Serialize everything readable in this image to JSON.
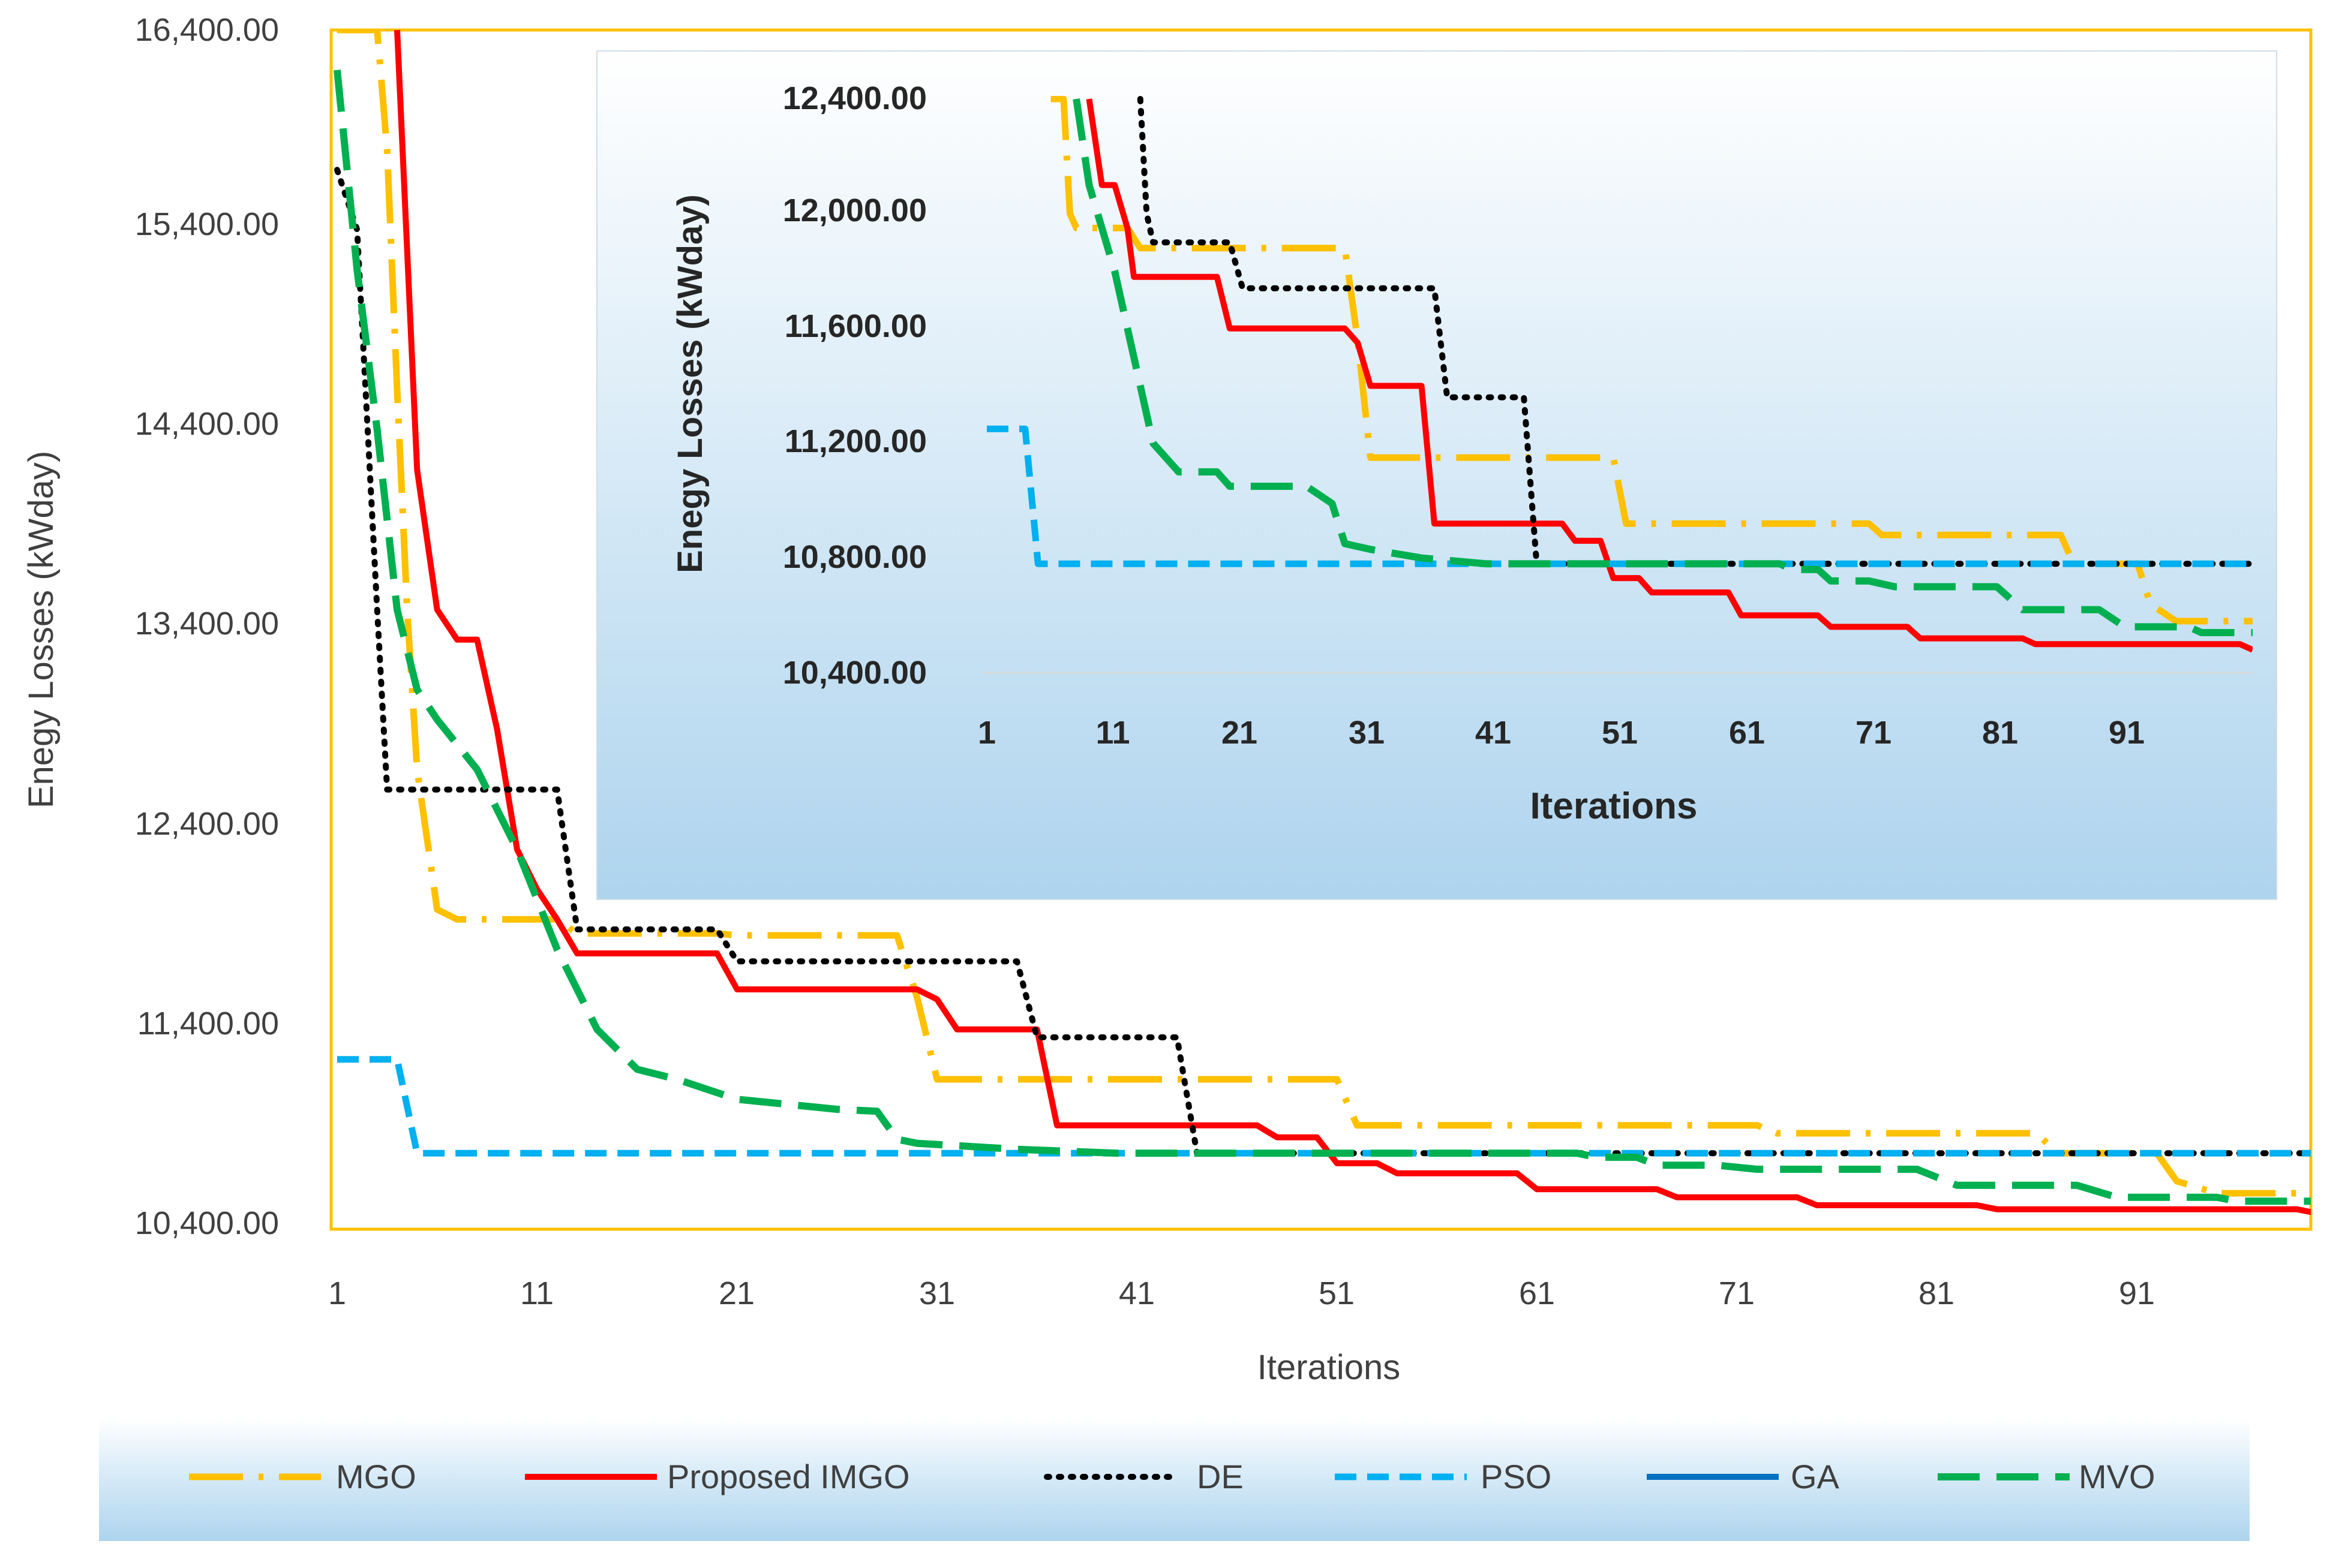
{
  "chart_data": [
    {
      "id": "main",
      "type": "line",
      "title": "",
      "xlabel": "Iterations",
      "ylabel": "Enegy Losses (kWday)",
      "xlim": [
        1,
        100
      ],
      "ylim": [
        10400,
        16400
      ],
      "xticks": [
        "1",
        "11",
        "21",
        "31",
        "41",
        "51",
        "61",
        "71",
        "81",
        "91"
      ],
      "yticks": [
        "10,400.00",
        "11,400.00",
        "12,400.00",
        "13,400.00",
        "14,400.00",
        "15,400.00",
        "16,400.00"
      ],
      "series": [
        {
          "name": "MGO",
          "color": "#FFC000",
          "dash": "long-dash-dot",
          "points": [
            [
              1,
              16400
            ],
            [
              3,
              16400
            ],
            [
              3.5,
              15800
            ],
            [
              4,
              14600
            ],
            [
              4.5,
              13500
            ],
            [
              5,
              12700
            ],
            [
              6,
              12000
            ],
            [
              7,
              11950
            ],
            [
              12,
              11950
            ],
            [
              13,
              11880
            ],
            [
              20,
              11880
            ],
            [
              21,
              11870
            ],
            [
              29,
              11870
            ],
            [
              30,
              11560
            ],
            [
              31,
              11150
            ],
            [
              51,
              11150
            ],
            [
              52,
              10920
            ],
            [
              72,
              10920
            ],
            [
              73,
              10880
            ],
            [
              86,
              10880
            ],
            [
              87,
              10780
            ],
            [
              92,
              10780
            ],
            [
              93,
              10640
            ],
            [
              95,
              10580
            ],
            [
              100,
              10580
            ]
          ]
        },
        {
          "name": "Proposed IMGO",
          "color": "#FF0000",
          "dash": "solid",
          "points": [
            [
              4,
              16400
            ],
            [
              5,
              14200
            ],
            [
              6,
              13500
            ],
            [
              7,
              13350
            ],
            [
              8,
              13350
            ],
            [
              9,
              12900
            ],
            [
              10,
              12300
            ],
            [
              11,
              12100
            ],
            [
              12,
              11950
            ],
            [
              13,
              11780
            ],
            [
              20,
              11780
            ],
            [
              21,
              11600
            ],
            [
              30,
              11600
            ],
            [
              31,
              11550
            ],
            [
              32,
              11400
            ],
            [
              36,
              11400
            ],
            [
              37,
              10920
            ],
            [
              47,
              10920
            ],
            [
              48,
              10860
            ],
            [
              50,
              10860
            ],
            [
              51,
              10730
            ],
            [
              53,
              10730
            ],
            [
              54,
              10680
            ],
            [
              60,
              10680
            ],
            [
              61,
              10600
            ],
            [
              67,
              10600
            ],
            [
              68,
              10560
            ],
            [
              74,
              10560
            ],
            [
              75,
              10520
            ],
            [
              83,
              10520
            ],
            [
              84,
              10500
            ],
            [
              99,
              10500
            ],
            [
              100,
              10480
            ]
          ]
        },
        {
          "name": "DE",
          "color": "#000000",
          "dash": "dotted",
          "points": [
            [
              1,
              15700
            ],
            [
              2,
              15400
            ],
            [
              3,
              13500
            ],
            [
              3.5,
              12600
            ],
            [
              12,
              12600
            ],
            [
              13,
              11900
            ],
            [
              20,
              11900
            ],
            [
              21,
              11740
            ],
            [
              35,
              11740
            ],
            [
              36,
              11360
            ],
            [
              43,
              11360
            ],
            [
              44,
              10780
            ],
            [
              100,
              10780
            ]
          ]
        },
        {
          "name": "PSO",
          "color": "#00B0F0",
          "dash": "dash",
          "points": [
            [
              1,
              11250
            ],
            [
              4,
              11250
            ],
            [
              5,
              10780
            ],
            [
              100,
              10780
            ]
          ]
        },
        {
          "name": "GA",
          "color": "#0070C0",
          "dash": "solid",
          "points": []
        },
        {
          "name": "MVO",
          "color": "#00B050",
          "dash": "long-dash",
          "points": [
            [
              1,
              16200
            ],
            [
              2,
              15200
            ],
            [
              3,
              14400
            ],
            [
              4,
              13500
            ],
            [
              5,
              13100
            ],
            [
              6,
              12950
            ],
            [
              8,
              12700
            ],
            [
              10,
              12300
            ],
            [
              12,
              11800
            ],
            [
              14,
              11400
            ],
            [
              16,
              11200
            ],
            [
              18,
              11150
            ],
            [
              21,
              11050
            ],
            [
              26,
              11000
            ],
            [
              28,
              10990
            ],
            [
              29,
              10850
            ],
            [
              30,
              10830
            ],
            [
              35,
              10800
            ],
            [
              40,
              10780
            ],
            [
              63,
              10780
            ],
            [
              64,
              10760
            ],
            [
              66,
              10760
            ],
            [
              67,
              10720
            ],
            [
              70,
              10720
            ],
            [
              72,
              10700
            ],
            [
              80,
              10700
            ],
            [
              82,
              10620
            ],
            [
              88,
              10620
            ],
            [
              90,
              10560
            ],
            [
              95,
              10560
            ],
            [
              96,
              10540
            ],
            [
              100,
              10540
            ]
          ]
        }
      ]
    },
    {
      "id": "inset",
      "type": "line",
      "title": "",
      "xlabel": "Iterations",
      "ylabel": "Enegy Losses (kWday)",
      "xlim": [
        1,
        100
      ],
      "ylim": [
        10400,
        12400
      ],
      "xticks": [
        "1",
        "11",
        "21",
        "31",
        "41",
        "51",
        "61",
        "71",
        "81",
        "91"
      ],
      "yticks": [
        "10,400.00",
        "10,800.00",
        "11,200.00",
        "11,600.00",
        "12,000.00",
        "12,400.00"
      ],
      "series": [
        {
          "name": "MGO",
          "color": "#FFC000",
          "dash": "long-dash-dot",
          "points": [
            [
              6,
              12400
            ],
            [
              7,
              12400
            ],
            [
              7.5,
              12000
            ],
            [
              8,
              11950
            ],
            [
              12,
              11950
            ],
            [
              13,
              11880
            ],
            [
              29,
              11880
            ],
            [
              30,
              11560
            ],
            [
              31,
              11150
            ],
            [
              50,
              11150
            ],
            [
              51,
              10920
            ],
            [
              70,
              10920
            ],
            [
              71,
              10880
            ],
            [
              85,
              10880
            ],
            [
              86,
              10780
            ],
            [
              91,
              10780
            ],
            [
              92,
              10640
            ],
            [
              94,
              10580
            ],
            [
              100,
              10580
            ]
          ]
        },
        {
          "name": "Proposed IMGO",
          "color": "#FF0000",
          "dash": "solid",
          "points": [
            [
              9,
              12400
            ],
            [
              10,
              12100
            ],
            [
              11,
              12100
            ],
            [
              12,
              11950
            ],
            [
              12.5,
              11780
            ],
            [
              19,
              11780
            ],
            [
              20,
              11600
            ],
            [
              29,
              11600
            ],
            [
              30,
              11550
            ],
            [
              31,
              11400
            ],
            [
              35,
              11400
            ],
            [
              36,
              10920
            ],
            [
              46,
              10920
            ],
            [
              47,
              10860
            ],
            [
              49,
              10860
            ],
            [
              50,
              10730
            ],
            [
              52,
              10730
            ],
            [
              53,
              10680
            ],
            [
              59,
              10680
            ],
            [
              60,
              10600
            ],
            [
              66,
              10600
            ],
            [
              67,
              10560
            ],
            [
              73,
              10560
            ],
            [
              74,
              10520
            ],
            [
              82,
              10520
            ],
            [
              83,
              10500
            ],
            [
              99,
              10500
            ],
            [
              100,
              10480
            ]
          ]
        },
        {
          "name": "DE",
          "color": "#000000",
          "dash": "dotted",
          "points": [
            [
              13,
              12400
            ],
            [
              13.5,
              12000
            ],
            [
              14,
              11900
            ],
            [
              20,
              11900
            ],
            [
              21,
              11740
            ],
            [
              36,
              11740
            ],
            [
              37,
              11360
            ],
            [
              43,
              11360
            ],
            [
              44,
              10780
            ],
            [
              100,
              10780
            ]
          ]
        },
        {
          "name": "PSO",
          "color": "#00B0F0",
          "dash": "dash",
          "points": [
            [
              1,
              11250
            ],
            [
              4,
              11250
            ],
            [
              5,
              10780
            ],
            [
              100,
              10780
            ]
          ]
        },
        {
          "name": "MVO",
          "color": "#00B050",
          "dash": "long-dash",
          "points": [
            [
              8,
              12400
            ],
            [
              9,
              12100
            ],
            [
              10,
              11950
            ],
            [
              11,
              11800
            ],
            [
              12,
              11600
            ],
            [
              13,
              11400
            ],
            [
              14,
              11200
            ],
            [
              16,
              11100
            ],
            [
              19,
              11100
            ],
            [
              20,
              11050
            ],
            [
              26,
              11050
            ],
            [
              28,
              10990
            ],
            [
              29,
              10850
            ],
            [
              31,
              10830
            ],
            [
              35,
              10800
            ],
            [
              40,
              10780
            ],
            [
              63,
              10780
            ],
            [
              64,
              10760
            ],
            [
              66,
              10760
            ],
            [
              67,
              10720
            ],
            [
              70,
              10720
            ],
            [
              72,
              10700
            ],
            [
              80,
              10700
            ],
            [
              82,
              10620
            ],
            [
              88,
              10620
            ],
            [
              90,
              10560
            ],
            [
              95,
              10560
            ],
            [
              96,
              10540
            ],
            [
              100,
              10540
            ]
          ]
        }
      ]
    }
  ],
  "legend": [
    {
      "name": "MGO",
      "color": "#FFC000",
      "dash": "long-dash-dot"
    },
    {
      "name": "Proposed IMGO",
      "color": "#FF0000",
      "dash": "solid"
    },
    {
      "name": "DE",
      "color": "#000000",
      "dash": "dotted"
    },
    {
      "name": "PSO",
      "color": "#00B0F0",
      "dash": "dash"
    },
    {
      "name": "GA",
      "color": "#0070C0",
      "dash": "solid"
    },
    {
      "name": "MVO",
      "color": "#00B050",
      "dash": "long-dash"
    }
  ],
  "colors": {
    "plot_border": "#FFC000",
    "inset_bg_top": "#FFFFFF",
    "inset_bg_bottom": "#AFD5EE"
  }
}
